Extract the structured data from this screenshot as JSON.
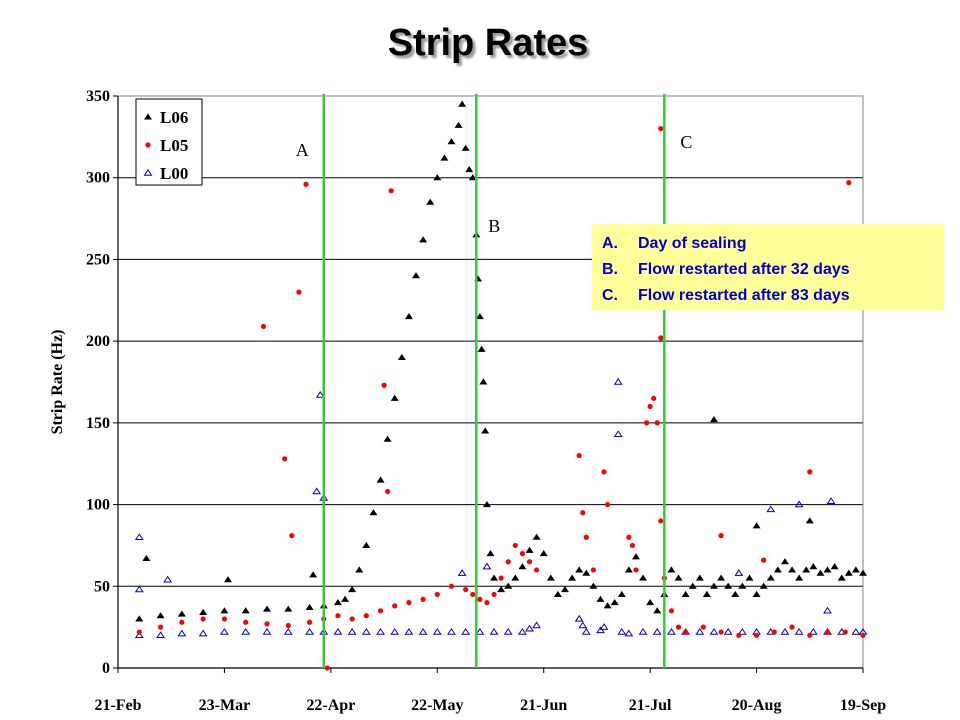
{
  "chart_data": {
    "type": "scatter",
    "title": "Strip Rates",
    "ylabel": "Strip Rate (Hz)",
    "xlabel": "",
    "ylim": [
      0,
      350
    ],
    "yticks": [
      0,
      50,
      100,
      150,
      200,
      250,
      300,
      350
    ],
    "x_range_days": [
      0,
      210
    ],
    "xticks": [
      {
        "label": "21-Feb",
        "day": 0
      },
      {
        "label": "23-Mar",
        "day": 30
      },
      {
        "label": "22-Apr",
        "day": 60
      },
      {
        "label": "22-May",
        "day": 90
      },
      {
        "label": "21-Jun",
        "day": 120
      },
      {
        "label": "21-Jul",
        "day": 150
      },
      {
        "label": "20-Aug",
        "day": 180
      },
      {
        "label": "19-Sep",
        "day": 210
      }
    ],
    "grid": true,
    "legend_position": "top-left",
    "series": [
      {
        "name": "L06",
        "marker": "filled-triangle",
        "color": "#000000",
        "points": [
          [
            6,
            30
          ],
          [
            12,
            32
          ],
          [
            18,
            33
          ],
          [
            24,
            34
          ],
          [
            30,
            35
          ],
          [
            36,
            35
          ],
          [
            42,
            36
          ],
          [
            48,
            36
          ],
          [
            54,
            37
          ],
          [
            58,
            38
          ],
          [
            62,
            40
          ],
          [
            64,
            42
          ],
          [
            66,
            48
          ],
          [
            68,
            60
          ],
          [
            70,
            75
          ],
          [
            72,
            95
          ],
          [
            74,
            115
          ],
          [
            76,
            140
          ],
          [
            78,
            165
          ],
          [
            80,
            190
          ],
          [
            82,
            215
          ],
          [
            84,
            240
          ],
          [
            86,
            262
          ],
          [
            88,
            285
          ],
          [
            90,
            300
          ],
          [
            92,
            312
          ],
          [
            94,
            322
          ],
          [
            96,
            332
          ],
          [
            97,
            345
          ],
          [
            98,
            318
          ],
          [
            99,
            305
          ],
          [
            100,
            300
          ],
          [
            101,
            265
          ],
          [
            101.5,
            238
          ],
          [
            102,
            215
          ],
          [
            102.5,
            195
          ],
          [
            103,
            175
          ],
          [
            103.5,
            145
          ],
          [
            104,
            100
          ],
          [
            105,
            70
          ],
          [
            106,
            55
          ],
          [
            108,
            48
          ],
          [
            110,
            50
          ],
          [
            112,
            55
          ],
          [
            114,
            62
          ],
          [
            116,
            72
          ],
          [
            118,
            80
          ],
          [
            120,
            70
          ],
          [
            122,
            55
          ],
          [
            124,
            45
          ],
          [
            126,
            48
          ],
          [
            128,
            55
          ],
          [
            130,
            60
          ],
          [
            132,
            58
          ],
          [
            134,
            50
          ],
          [
            136,
            42
          ],
          [
            138,
            38
          ],
          [
            140,
            40
          ],
          [
            142,
            45
          ],
          [
            144,
            60
          ],
          [
            146,
            68
          ],
          [
            148,
            55
          ],
          [
            150,
            40
          ],
          [
            152,
            35
          ],
          [
            154,
            45
          ],
          [
            156,
            60
          ],
          [
            158,
            55
          ],
          [
            160,
            45
          ],
          [
            162,
            50
          ],
          [
            164,
            55
          ],
          [
            166,
            45
          ],
          [
            168,
            50
          ],
          [
            170,
            55
          ],
          [
            172,
            50
          ],
          [
            174,
            45
          ],
          [
            176,
            50
          ],
          [
            178,
            55
          ],
          [
            180,
            45
          ],
          [
            182,
            50
          ],
          [
            184,
            55
          ],
          [
            186,
            60
          ],
          [
            188,
            65
          ],
          [
            190,
            60
          ],
          [
            192,
            55
          ],
          [
            194,
            60
          ],
          [
            196,
            62
          ],
          [
            198,
            58
          ],
          [
            200,
            60
          ],
          [
            202,
            62
          ],
          [
            204,
            55
          ],
          [
            206,
            58
          ],
          [
            208,
            60
          ],
          [
            210,
            58
          ],
          [
            8,
            67
          ],
          [
            31,
            54
          ],
          [
            55,
            57
          ],
          [
            168,
            152
          ],
          [
            180,
            87
          ],
          [
            195,
            90
          ]
        ]
      },
      {
        "name": "L05",
        "marker": "filled-circle",
        "color": "#ff0000",
        "points": [
          [
            6,
            22
          ],
          [
            12,
            25
          ],
          [
            18,
            28
          ],
          [
            24,
            30
          ],
          [
            30,
            30
          ],
          [
            36,
            28
          ],
          [
            42,
            27
          ],
          [
            48,
            26
          ],
          [
            54,
            28
          ],
          [
            58,
            30
          ],
          [
            62,
            32
          ],
          [
            66,
            30
          ],
          [
            70,
            32
          ],
          [
            74,
            35
          ],
          [
            78,
            38
          ],
          [
            82,
            40
          ],
          [
            86,
            42
          ],
          [
            90,
            45
          ],
          [
            94,
            50
          ],
          [
            98,
            48
          ],
          [
            100,
            45
          ],
          [
            102,
            42
          ],
          [
            104,
            40
          ],
          [
            106,
            45
          ],
          [
            108,
            55
          ],
          [
            110,
            65
          ],
          [
            112,
            75
          ],
          [
            114,
            70
          ],
          [
            116,
            65
          ],
          [
            118,
            60
          ],
          [
            130,
            130
          ],
          [
            131,
            95
          ],
          [
            132,
            80
          ],
          [
            134,
            60
          ],
          [
            137,
            120
          ],
          [
            138,
            100
          ],
          [
            144,
            80
          ],
          [
            145,
            75
          ],
          [
            146,
            60
          ],
          [
            149,
            150
          ],
          [
            150,
            160
          ],
          [
            151,
            165
          ],
          [
            152,
            150
          ],
          [
            153,
            90
          ],
          [
            154,
            55
          ],
          [
            156,
            35
          ],
          [
            158,
            25
          ],
          [
            160,
            22
          ],
          [
            165,
            25
          ],
          [
            170,
            22
          ],
          [
            175,
            20
          ],
          [
            180,
            20
          ],
          [
            185,
            22
          ],
          [
            190,
            25
          ],
          [
            195,
            20
          ],
          [
            200,
            22
          ],
          [
            205,
            22
          ],
          [
            210,
            20
          ],
          [
            41,
            209
          ],
          [
            53,
            296
          ],
          [
            59,
            0
          ],
          [
            51,
            230
          ],
          [
            47,
            128
          ],
          [
            49,
            81
          ],
          [
            77,
            292
          ],
          [
            75,
            173
          ],
          [
            76,
            108
          ],
          [
            153,
            330
          ],
          [
            153,
            202
          ],
          [
            206,
            297
          ],
          [
            195,
            120
          ],
          [
            170,
            81
          ],
          [
            182,
            66
          ]
        ]
      },
      {
        "name": "L00",
        "marker": "open-triangle",
        "color": "#0000cc",
        "points": [
          [
            6,
            20
          ],
          [
            12,
            20
          ],
          [
            18,
            21
          ],
          [
            24,
            21
          ],
          [
            30,
            22
          ],
          [
            36,
            22
          ],
          [
            42,
            22
          ],
          [
            48,
            22
          ],
          [
            54,
            22
          ],
          [
            58,
            22
          ],
          [
            62,
            22
          ],
          [
            66,
            22
          ],
          [
            70,
            22
          ],
          [
            74,
            22
          ],
          [
            78,
            22
          ],
          [
            82,
            22
          ],
          [
            86,
            22
          ],
          [
            90,
            22
          ],
          [
            94,
            22
          ],
          [
            98,
            22
          ],
          [
            102,
            22
          ],
          [
            106,
            22
          ],
          [
            110,
            22
          ],
          [
            114,
            22
          ],
          [
            116,
            24
          ],
          [
            118,
            26
          ],
          [
            130,
            30
          ],
          [
            131,
            26
          ],
          [
            132,
            22
          ],
          [
            136,
            23
          ],
          [
            137,
            25
          ],
          [
            142,
            22
          ],
          [
            144,
            21
          ],
          [
            148,
            22
          ],
          [
            152,
            22
          ],
          [
            156,
            22
          ],
          [
            160,
            22
          ],
          [
            164,
            22
          ],
          [
            168,
            22
          ],
          [
            172,
            22
          ],
          [
            176,
            22
          ],
          [
            180,
            22
          ],
          [
            184,
            22
          ],
          [
            188,
            22
          ],
          [
            192,
            22
          ],
          [
            196,
            22
          ],
          [
            200,
            22
          ],
          [
            204,
            22
          ],
          [
            208,
            22
          ],
          [
            210,
            22
          ],
          [
            6,
            80
          ],
          [
            6,
            48
          ],
          [
            14,
            54
          ],
          [
            57,
            167
          ],
          [
            56,
            108
          ],
          [
            58,
            104
          ],
          [
            141,
            175
          ],
          [
            141,
            143
          ],
          [
            104,
            62
          ],
          [
            97,
            58
          ],
          [
            184,
            97
          ],
          [
            192,
            100
          ],
          [
            201,
            102
          ],
          [
            175,
            58
          ],
          [
            200,
            35
          ]
        ]
      }
    ],
    "vertical_markers": [
      {
        "label": "A",
        "day": 58
      },
      {
        "label": "B",
        "day": 101
      },
      {
        "label": "C",
        "day": 154
      }
    ],
    "annotations": [
      {
        "key": "A.",
        "text": "Day of sealing"
      },
      {
        "key": "B.",
        "text": "Flow restarted after 32 days"
      },
      {
        "key": "C.",
        "text": "Flow restarted after 83 days"
      }
    ]
  },
  "colors": {
    "marker_line": "#33cc33",
    "annotation_box": "#ffff99",
    "annotation_text": "#0000cc",
    "title_shadow": "#9a9a9a",
    "grid": "#000000"
  }
}
